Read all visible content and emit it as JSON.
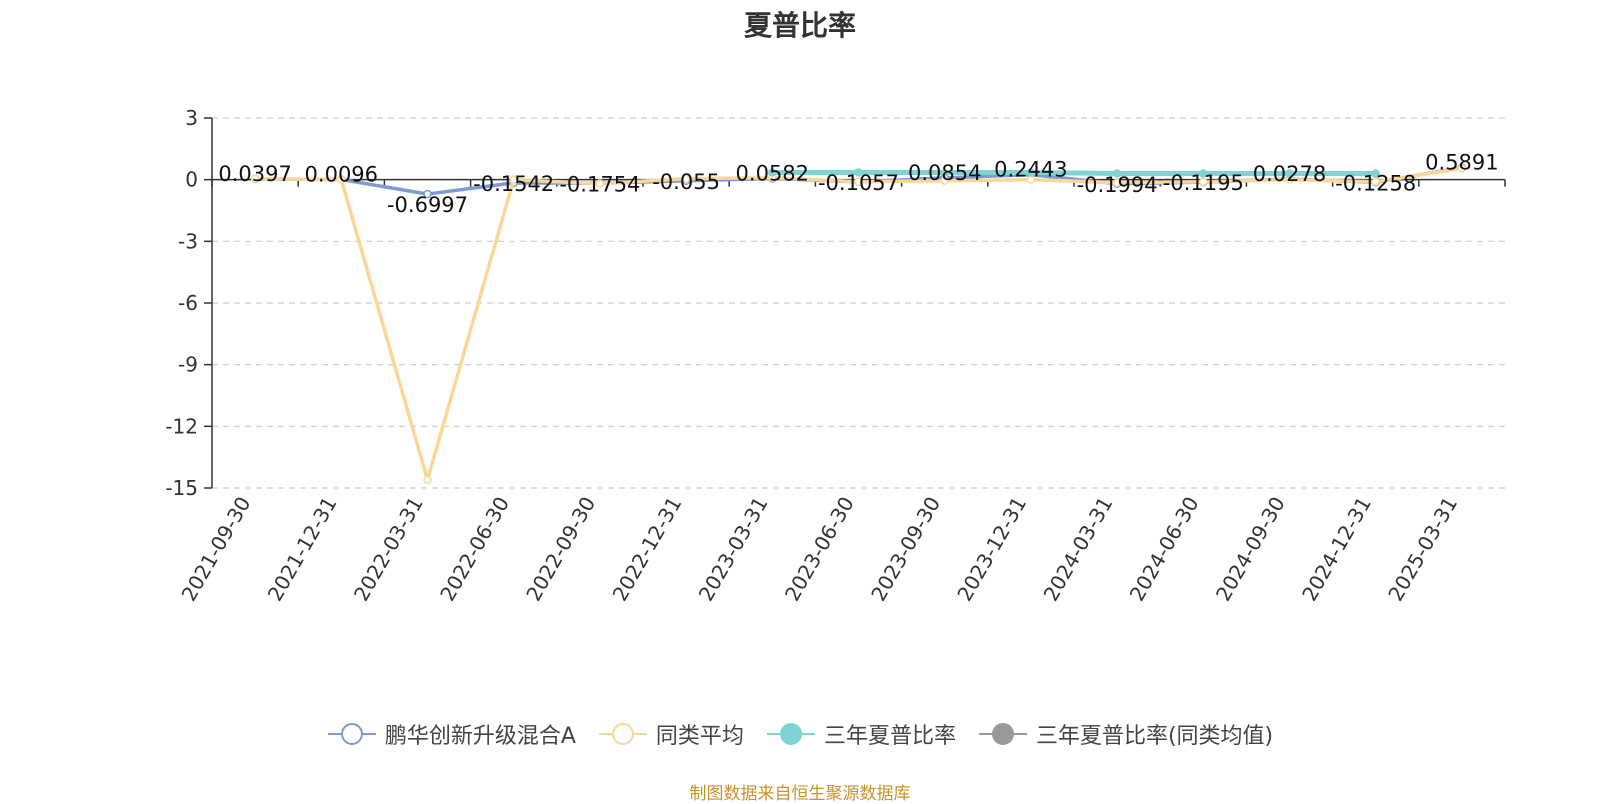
{
  "chart_data": {
    "type": "line",
    "title": "夏普比率",
    "categories": [
      "2021-09-30",
      "2021-12-31",
      "2022-03-31",
      "2022-06-30",
      "2022-09-30",
      "2022-12-31",
      "2023-03-31",
      "2023-06-30",
      "2023-09-30",
      "2023-12-31",
      "2024-03-31",
      "2024-06-30",
      "2024-09-30",
      "2024-12-31",
      "2025-03-31"
    ],
    "ylim": [
      -15,
      3
    ],
    "yticks": [
      3,
      0,
      -3,
      -6,
      -9,
      -12,
      -15
    ],
    "grid": "horizontal dashed",
    "legend_position": "bottom",
    "series": [
      {
        "name": "鹏华创新升级混合A",
        "color": "#7b9bd1",
        "marker": "hollow-circle",
        "values": [
          0.0397,
          0.0096,
          -0.6997,
          -0.1542,
          -0.1754,
          -0.055,
          0.0582,
          -0.1057,
          0.0854,
          0.2443,
          -0.1994,
          -0.1195,
          0.0278,
          -0.1258,
          0.5891
        ],
        "labels": [
          "0.0397",
          "0.0096",
          "-0.6997",
          "-0.1542",
          "-0.1754",
          "-0.055",
          "0.0582",
          "-0.1057",
          "0.0854",
          "0.2443",
          "-0.1994",
          "-0.1195",
          "0.0278",
          "-0.1258",
          "0.5891"
        ]
      },
      {
        "name": "同类平均",
        "color": "#fad797",
        "marker": "hollow-circle",
        "values": [
          0.05,
          0.0,
          -14.6,
          0.0,
          -0.2,
          0.05,
          0.1,
          -0.1,
          -0.05,
          0.0,
          -0.15,
          -0.1,
          0.0,
          -0.1,
          0.55
        ]
      },
      {
        "name": "三年夏普比率",
        "color": "#7fd3d4",
        "marker": "filled-circle",
        "values": [
          null,
          null,
          null,
          null,
          null,
          null,
          0.35,
          0.35,
          null,
          0.35,
          0.3,
          0.3,
          0.3,
          0.3,
          null
        ]
      },
      {
        "name": "三年夏普比率(同类均值)",
        "color": "#999999",
        "marker": "filled-circle",
        "values": [
          null,
          null,
          null,
          null,
          null,
          null,
          null,
          null,
          null,
          null,
          null,
          null,
          null,
          null,
          null
        ]
      }
    ]
  },
  "source_note": "制图数据来自恒生聚源数据库"
}
